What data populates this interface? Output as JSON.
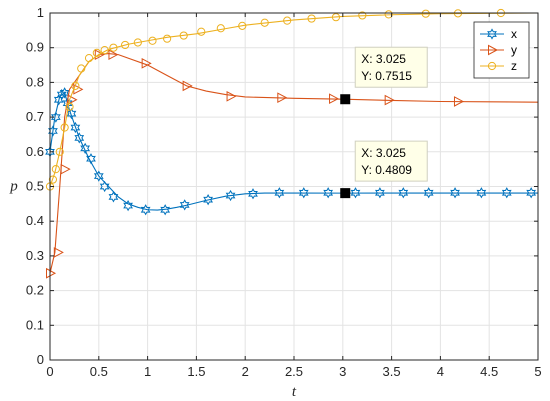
{
  "chart_data": {
    "type": "line",
    "xlabel": "t",
    "ylabel": "p",
    "xlim": [
      0,
      5
    ],
    "ylim": [
      0,
      1
    ],
    "xticks": [
      "0",
      "0.5",
      "1",
      "1.5",
      "2",
      "2.5",
      "3",
      "3.5",
      "4",
      "4.5",
      "5"
    ],
    "yticks": [
      "0",
      "0.1",
      "0.2",
      "0.3",
      "0.4",
      "0.5",
      "0.6",
      "0.7",
      "0.8",
      "0.9",
      "1"
    ],
    "grid": true,
    "legend": {
      "placement": "top-right"
    },
    "series": [
      {
        "name": "x",
        "color": "#0072BD",
        "marker": "hexagram",
        "curve_x": [
          0,
          0.05,
          0.1,
          0.15,
          0.2,
          0.3,
          0.4,
          0.5,
          0.6,
          0.7,
          0.8,
          0.9,
          1.0,
          1.1,
          1.2,
          1.3,
          1.4,
          1.6,
          1.8,
          2.0,
          2.2,
          2.5,
          3.0,
          3.5,
          4.0,
          4.5,
          5.0
        ],
        "curve_y": [
          0.6,
          0.7,
          0.76,
          0.77,
          0.72,
          0.64,
          0.58,
          0.53,
          0.5,
          0.47,
          0.45,
          0.44,
          0.433,
          0.432,
          0.435,
          0.44,
          0.446,
          0.46,
          0.472,
          0.479,
          0.481,
          0.481,
          0.4809,
          0.481,
          0.481,
          0.481,
          0.481
        ],
        "marker_x": [
          0,
          0.03,
          0.06,
          0.09,
          0.12,
          0.15,
          0.18,
          0.22,
          0.26,
          0.3,
          0.36,
          0.42,
          0.5,
          0.56,
          0.65,
          0.8,
          0.98,
          1.18,
          1.38,
          1.62,
          1.85,
          2.08,
          2.35,
          2.6,
          2.85,
          3.13,
          3.38,
          3.62,
          3.88,
          4.15,
          4.42,
          4.68,
          4.93
        ],
        "marker_y": [
          0.6,
          0.66,
          0.7,
          0.75,
          0.765,
          0.77,
          0.74,
          0.71,
          0.67,
          0.64,
          0.61,
          0.58,
          0.53,
          0.5,
          0.47,
          0.445,
          0.433,
          0.433,
          0.447,
          0.462,
          0.474,
          0.479,
          0.482,
          0.482,
          0.482,
          0.482,
          0.482,
          0.482,
          0.482,
          0.482,
          0.482,
          0.482,
          0.482
        ]
      },
      {
        "name": "y",
        "color": "#D95319",
        "marker": "triangle-right",
        "curve_x": [
          0,
          0.05,
          0.1,
          0.15,
          0.2,
          0.25,
          0.3,
          0.4,
          0.5,
          0.6,
          0.7,
          0.8,
          1.0,
          1.2,
          1.4,
          1.6,
          1.8,
          2.0,
          2.5,
          3.0,
          3.5,
          4.0,
          4.5,
          5.0
        ],
        "curve_y": [
          0.25,
          0.31,
          0.5,
          0.7,
          0.78,
          0.8,
          0.82,
          0.86,
          0.88,
          0.883,
          0.88,
          0.87,
          0.85,
          0.82,
          0.79,
          0.775,
          0.765,
          0.758,
          0.754,
          0.7515,
          0.748,
          0.745,
          0.744,
          0.743
        ],
        "marker_x": [
          0,
          0.08,
          0.15,
          0.22,
          0.28,
          0.5,
          0.64,
          0.98,
          1.4,
          1.85,
          2.37,
          2.9,
          3.47,
          4.18
        ],
        "marker_y": [
          0.25,
          0.31,
          0.55,
          0.75,
          0.78,
          0.88,
          0.88,
          0.855,
          0.79,
          0.76,
          0.756,
          0.753,
          0.749,
          0.745
        ]
      },
      {
        "name": "z",
        "color": "#EDB120",
        "marker": "circle",
        "curve_x": [
          0,
          0.05,
          0.1,
          0.15,
          0.2,
          0.3,
          0.4,
          0.5,
          0.6,
          0.8,
          1.0,
          1.2,
          1.5,
          1.8,
          2.0,
          2.5,
          3.0,
          3.5,
          4.0,
          4.5,
          5.0
        ],
        "curve_y": [
          0.5,
          0.54,
          0.6,
          0.67,
          0.75,
          0.82,
          0.86,
          0.88,
          0.895,
          0.91,
          0.92,
          0.93,
          0.94,
          0.955,
          0.965,
          0.98,
          0.99,
          0.995,
          0.998,
          0.999,
          1.0
        ],
        "marker_x": [
          0,
          0.03,
          0.06,
          0.1,
          0.15,
          0.2,
          0.26,
          0.32,
          0.4,
          0.48,
          0.56,
          0.65,
          0.77,
          0.9,
          1.05,
          1.2,
          1.37,
          1.55,
          1.75,
          1.97,
          2.2,
          2.43,
          2.68,
          2.93,
          3.2,
          3.47,
          3.85,
          4.18,
          4.62
        ],
        "marker_y": [
          0.5,
          0.52,
          0.55,
          0.6,
          0.67,
          0.73,
          0.79,
          0.84,
          0.87,
          0.885,
          0.893,
          0.9,
          0.908,
          0.915,
          0.92,
          0.926,
          0.935,
          0.946,
          0.956,
          0.963,
          0.972,
          0.978,
          0.984,
          0.988,
          0.993,
          0.996,
          0.998,
          0.999,
          1.0
        ]
      }
    ],
    "annotations": [
      {
        "x": 3.025,
        "y": 0.7515,
        "x_text": "X: 3.025",
        "y_text": "Y: 0.7515"
      },
      {
        "x": 3.025,
        "y": 0.4809,
        "x_text": "X: 3.025",
        "y_text": "Y: 0.4809"
      }
    ]
  }
}
